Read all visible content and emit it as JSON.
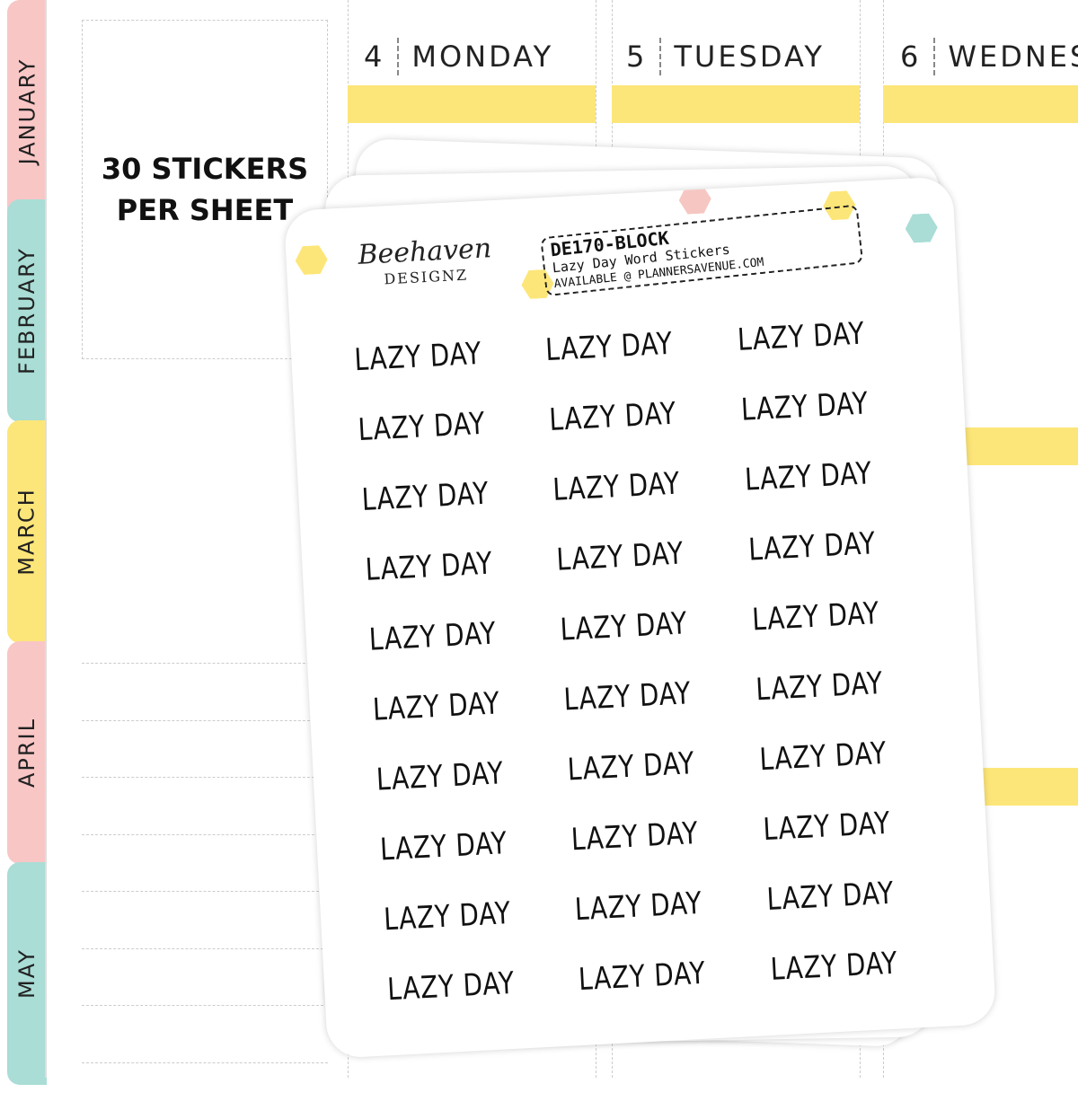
{
  "tabs": [
    {
      "label": "JANUARY",
      "color": "#f9c6c6"
    },
    {
      "label": "FEBRUARY",
      "color": "#a9ddd6"
    },
    {
      "label": "MARCH",
      "color": "#fde679"
    },
    {
      "label": "APRIL",
      "color": "#f9c6c6"
    },
    {
      "label": "MAY",
      "color": "#a9ddd6"
    }
  ],
  "box": {
    "line1": "30 STICKERS",
    "line2": "PER SHEET"
  },
  "days": [
    {
      "num": "4",
      "name": "MONDAY"
    },
    {
      "num": "5",
      "name": "TUESDAY"
    },
    {
      "num": "6",
      "name": "WEDNES"
    }
  ],
  "sheet": {
    "code": "DE170-BLOCK",
    "title": "Lazy Day Word Stickers",
    "available": "AVAILABLE @ PLANNERSAVENUE.COM",
    "logo": "Beehaven",
    "logo_sub": "DESIGNZ",
    "sticker": "LAZY DAY",
    "count": 30
  },
  "accent": "#fde679"
}
